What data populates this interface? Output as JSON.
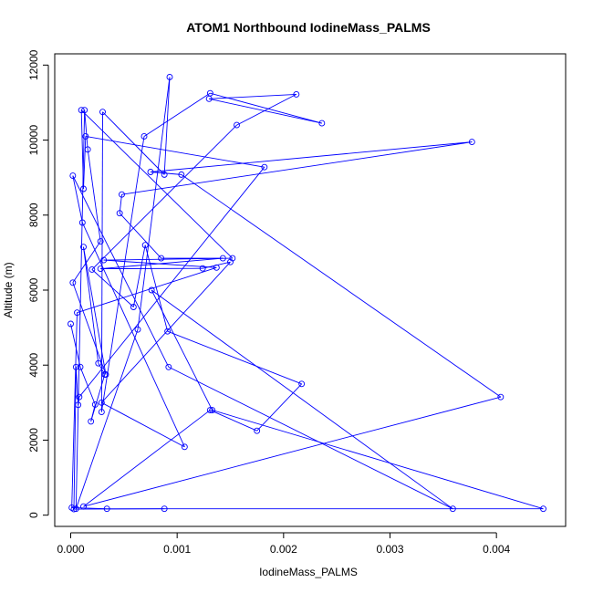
{
  "chart_data": {
    "type": "line",
    "title": "ATOM1 Northbound IodineMass_PALMS",
    "xlabel": "IodineMass_PALMS",
    "ylabel": "Altitude (m)",
    "xlim": [
      -0.00015,
      0.00465
    ],
    "ylim": [
      -300,
      12300
    ],
    "xticks": [
      0.0,
      0.001,
      0.002,
      0.003,
      0.004
    ],
    "xtick_labels": [
      "0.000",
      "0.001",
      "0.002",
      "0.003",
      "0.004"
    ],
    "yticks": [
      0,
      2000,
      4000,
      6000,
      8000,
      10000,
      12000
    ],
    "ytick_labels": [
      "0",
      "2000",
      "4000",
      "6000",
      "8000",
      "10000",
      "12000"
    ],
    "grid": false,
    "legend": "none",
    "style": {
      "color": "#0000ff",
      "marker": "open-circle",
      "line": "solid"
    },
    "series": [
      {
        "x": [
          0.0,
          9e-05,
          0.00023,
          0.00019,
          0.00032,
          0.00026,
          0.00012,
          0.00033,
          2e-05,
          0.00028,
          0.00016,
          0.00013,
          5e-05,
          0.00063,
          0.00093,
          0.00088,
          0.0003,
          0.00029,
          0.00069,
          0.00131,
          0.00236,
          0.0013,
          0.00212,
          0.00156,
          0.0002,
          0.00059,
          0.0007,
          0.00091,
          0.00217,
          0.00175,
          0.00131,
          0.00012,
          0.00404,
          0.00104,
          0.00075,
          0.00377,
          0.00048,
          0.00046,
          0.00085,
          0.00143,
          0.00028,
          0.00124,
          0.0015,
          0.00029,
          0.00107,
          0.00011,
          2e-05,
          0.00092,
          0.00359,
          0.00076,
          0.00133,
          0.00444,
          0.00034,
          1e-05,
          6e-05,
          0.00137,
          0.00031,
          0.00152,
          0.0001,
          0.00012,
          0.00014,
          0.00182,
          8e-05,
          7e-05,
          5e-05,
          3e-05,
          0.00088
        ],
        "y": [
          5100,
          3950,
          2950,
          2500,
          3750,
          4050,
          7150,
          3750,
          6200,
          7300,
          9750,
          10800,
          170,
          4950,
          11680,
          9080,
          10750,
          2750,
          10100,
          11250,
          10450,
          11100,
          11220,
          10400,
          6550,
          5550,
          7200,
          4900,
          3500,
          2250,
          2800,
          230,
          3150,
          9080,
          9150,
          9950,
          8550,
          8050,
          6850,
          6850,
          6570,
          6580,
          6750,
          3000,
          1820,
          7800,
          9050,
          3950,
          170,
          6000,
          2800,
          170,
          170,
          200,
          5400,
          6600,
          6800,
          6850,
          10800,
          8700,
          10100,
          9280,
          3150,
          2940,
          3950,
          160,
          170
        ]
      }
    ]
  }
}
